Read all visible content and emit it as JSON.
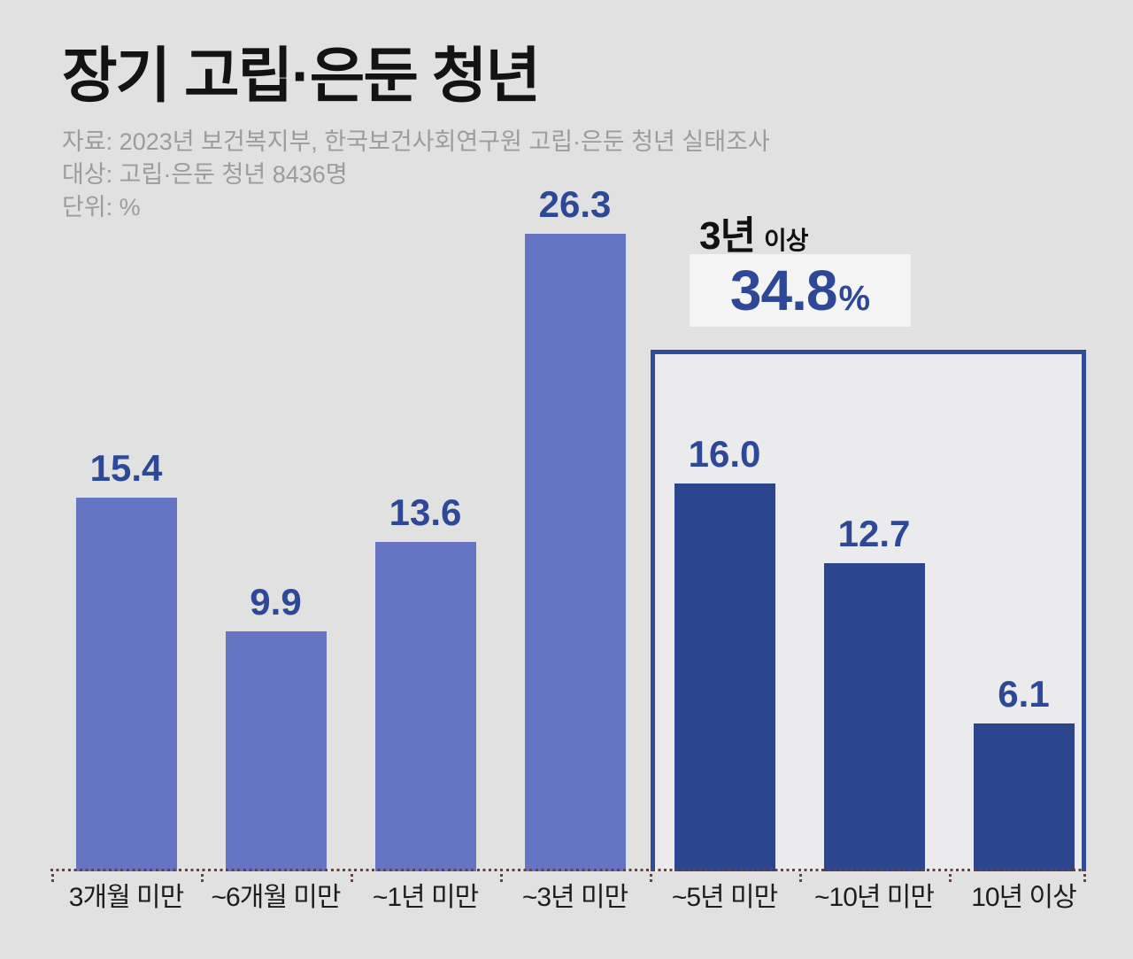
{
  "title": "장기 고립·은둔 청년",
  "meta": {
    "source": "자료: 2023년 보건복지부, 한국보건사회연구원 고립·은둔 청년 실태조사",
    "target": "대상: 고립·은둔 청년 8436명",
    "unit": "단위: %"
  },
  "callout": {
    "label_main": "3년",
    "label_sub": "이상",
    "value": "34.8",
    "percent_sign": "%"
  },
  "colors": {
    "background": "#e1e1e1",
    "bar_light": "#6575c3",
    "bar_dark": "#2b458e",
    "label_navy": "#2c4897",
    "box_border": "#2e4c98",
    "box_bg": "#ebebed",
    "axis_dotted": "#6e4138",
    "callout_bg": "#f5f5f6",
    "subtitle_gray": "#9c9c9c",
    "text_dark": "#1d1d1d",
    "title_black": "#131313"
  },
  "chart_data": {
    "type": "bar",
    "title": "장기 고립·은둔 청년",
    "unit": "%",
    "categories": [
      "3개월 미만",
      "~6개월 미만",
      "~1년 미만",
      "~3년 미만",
      "~5년 미만",
      "~10년 미만",
      "10년 이상"
    ],
    "values": [
      15.4,
      9.9,
      13.6,
      26.3,
      16.0,
      12.7,
      6.1
    ],
    "value_labels": [
      "15.4",
      "9.9",
      "13.6",
      "26.3",
      "16.0",
      "12.7",
      "6.1"
    ],
    "bar_styles": [
      "light",
      "light",
      "light",
      "light",
      "dark",
      "dark",
      "dark"
    ],
    "ylim": [
      0,
      26.3
    ],
    "grid": false,
    "legend": false,
    "highlight_group": {
      "label": "3년 이상",
      "total": 34.8,
      "categories": [
        "~5년 미만",
        "~10년 미만",
        "10년 이상"
      ]
    }
  }
}
